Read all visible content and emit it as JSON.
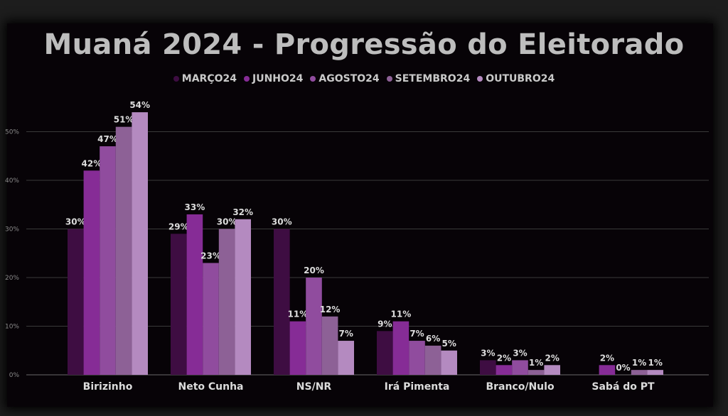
{
  "chart_data": {
    "type": "bar",
    "title": "Muaná 2024 - Progressão do Eleitorado",
    "categories": [
      "Birizinho",
      "Neto Cunha",
      "NS/NR",
      "Irá Pimenta",
      "Branco/Nulo",
      "Sabá do PT"
    ],
    "series": [
      {
        "name": "MARÇO24",
        "color": "#3e0d42",
        "values": [
          30,
          29,
          30,
          9,
          3,
          0
        ],
        "labels": [
          "30%",
          "29%",
          "30%",
          "9%",
          "3%",
          ""
        ]
      },
      {
        "name": "JUNHO24",
        "color": "#862c96",
        "values": [
          42,
          33,
          11,
          11,
          2,
          2
        ],
        "labels": [
          "42%",
          "33%",
          "11%",
          "11%",
          "2%",
          "2%"
        ]
      },
      {
        "name": "AGOSTO24",
        "color": "#904c9e",
        "values": [
          47,
          23,
          20,
          7,
          3,
          0
        ],
        "labels": [
          "47%",
          "23%",
          "20%",
          "7%",
          "3%",
          "0%"
        ]
      },
      {
        "name": "SETEMBRO24",
        "color": "#8d6196",
        "values": [
          51,
          30,
          12,
          6,
          1,
          1
        ],
        "labels": [
          "51%",
          "30%",
          "12%",
          "6%",
          "1%",
          "1%"
        ]
      },
      {
        "name": "OUTUBRO24",
        "color": "#b48ac0",
        "values": [
          54,
          32,
          7,
          5,
          2,
          1
        ],
        "labels": [
          "54%",
          "32%",
          "7%",
          "5%",
          "2%",
          "1%"
        ]
      }
    ],
    "yticks": [
      "0%",
      "10%",
      "20%",
      "30%",
      "40%",
      "50%"
    ],
    "ylim": [
      0,
      60
    ],
    "grid": true,
    "legend_position": "top"
  }
}
